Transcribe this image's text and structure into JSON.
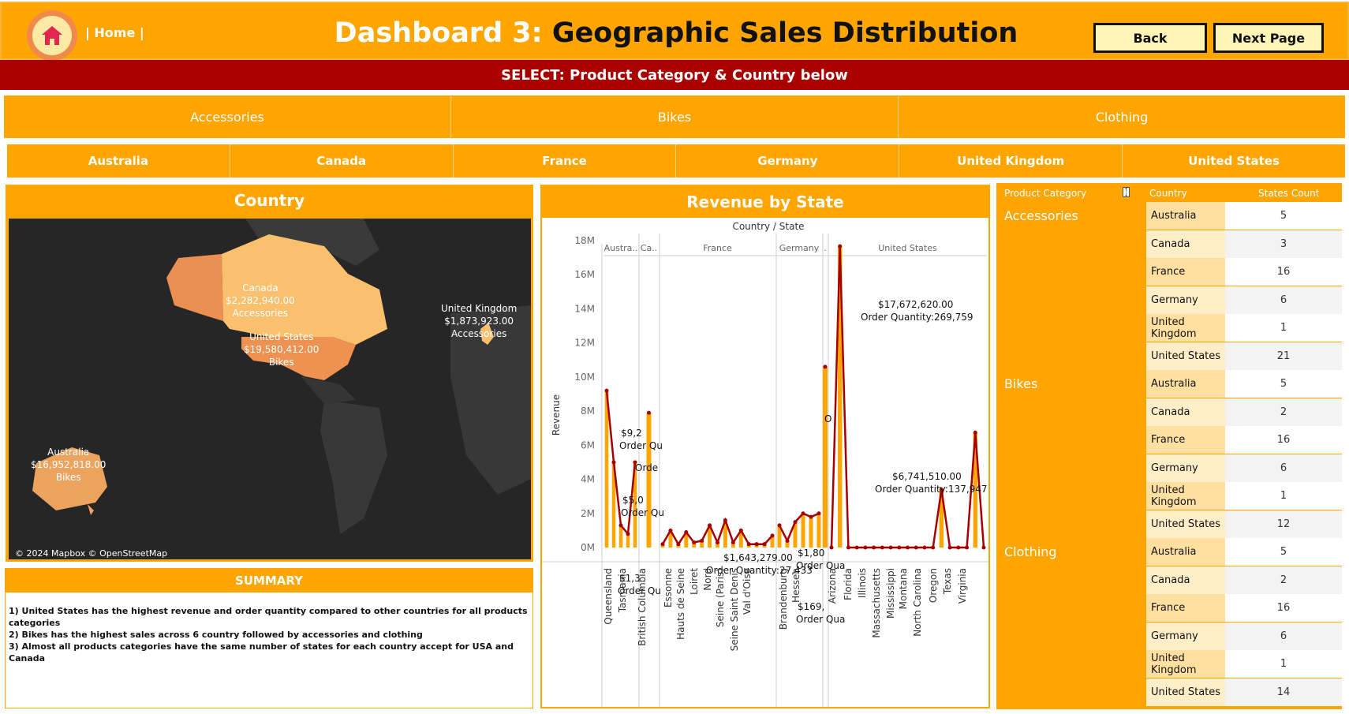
{
  "header": {
    "home_link": "| Home |",
    "title_prefix": "Dashboard 3: ",
    "title_main": "Geographic Sales Distribution",
    "back_label": "Back",
    "next_label": "Next Page"
  },
  "select_bar": "SELECT: Product Category & Country below",
  "categories": [
    "Accessories",
    "Bikes",
    "Clothing"
  ],
  "countries": [
    "Australia",
    "Canada",
    "France",
    "Germany",
    "United Kingdom",
    "United States"
  ],
  "map": {
    "title": "Country",
    "credit": "© 2024 Mapbox © OpenStreetMap",
    "labels": [
      {
        "country": "Canada",
        "revenue": "$2,282,940.00",
        "category": "Accessories"
      },
      {
        "country": "United States",
        "revenue": "$19,580,412.00",
        "category": "Bikes"
      },
      {
        "country": "United Kingdom",
        "revenue": "$1,873,923.00",
        "category": "Accessories"
      },
      {
        "country": "Australia",
        "revenue": "$16,952,818.00",
        "category": "Bikes"
      }
    ]
  },
  "summary": {
    "title": "SUMMARY",
    "lines": [
      "1) United States has the highest revenue and order quantity compared to other countries for all products categories",
      "2) Bikes has the highest sales across 6 country followed by accessories and clothing",
      "3) Almost all products categories have the same number of states for each country accept for USA and Canada"
    ]
  },
  "revenue_chart": {
    "title": "Revenue by State",
    "header": "Country / State",
    "ylabel": "Revenue",
    "ticks": [
      "0M",
      "2M",
      "4M",
      "6M",
      "8M",
      "10M",
      "12M",
      "14M",
      "16M",
      "18M"
    ],
    "country_headers": [
      "Austra..",
      "Ca..",
      "France",
      "Germany",
      ".",
      "United States"
    ],
    "x_labels": [
      "Queensland",
      "Tasmania",
      "British Columbia",
      "Essonne",
      "Hauts de Seine",
      "Loiret",
      "Nord",
      "Seine (Paris)",
      "Seine Saint Denis",
      "Val d'Oise",
      "Brandenburg",
      "Hessen",
      "Arizona",
      "Florida",
      "Illinois",
      "Massachusetts",
      "Mississippi",
      "Montana",
      "North Carolina",
      "Oregon",
      "Texas",
      "Virginia"
    ],
    "annotations": [
      {
        "line1": "$17,672,620.00",
        "line2": "Order Quantity:269,759"
      },
      {
        "line1": "$6,741,510.00",
        "line2": "Order Quantity:137,947"
      },
      {
        "line1": "$1,643,279.00",
        "line2": "Order Quantity:27,433"
      },
      {
        "line1": "$9,2",
        "line2": "Order Qu"
      },
      {
        "line1": "$5,0",
        "line2": "Order Qu"
      },
      {
        "line1": "$1,3",
        "line2": "Order Qu"
      },
      {
        "line1": "Orde",
        "line2": ""
      },
      {
        "line1": "$1,80",
        "line2": "Order Qua"
      },
      {
        "line1": "$169,",
        "line2": "Order Qua"
      },
      {
        "line1": "O",
        "line2": ""
      }
    ]
  },
  "chart_data": {
    "type": "line",
    "title": "Revenue by State",
    "xlabel": "Country / State",
    "ylabel": "Revenue",
    "ylim": [
      0,
      18000000
    ],
    "series": [
      {
        "name": "",
        "segments": [
          {
            "country": "Australia",
            "values": [
              9200000,
              5000000,
              1300000,
              800000,
              5000000
            ]
          },
          {
            "country": "Canada",
            "values": [
              7900000
            ]
          },
          {
            "country": "France",
            "values": [
              200000,
              1000000,
              200000,
              900000,
              300000,
              400000,
              1300000,
              300000,
              1600000,
              300000,
              1000000,
              200000,
              200000,
              200000,
              700000
            ]
          },
          {
            "country": "Germany",
            "values": [
              1300000,
              400000,
              1500000,
              2000000,
              1800000,
              2000000
            ]
          },
          {
            "country": "United Kingdom",
            "values": [
              10600000
            ]
          },
          {
            "country": "United States",
            "values": [
              0,
              17672620,
              0,
              0,
              0,
              0,
              0,
              0,
              0,
              0,
              0,
              0,
              0,
              3400000,
              0,
              0,
              0,
              6741510,
              0
            ]
          }
        ]
      }
    ]
  },
  "table": {
    "headers": [
      "Product Category",
      "Country",
      "States Count"
    ],
    "groups": [
      {
        "category": "Accessories",
        "rows": [
          [
            "Australia",
            "5"
          ],
          [
            "Canada",
            "3"
          ],
          [
            "France",
            "16"
          ],
          [
            "Germany",
            "6"
          ],
          [
            "United Kingdom",
            "1"
          ],
          [
            "United States",
            "21"
          ]
        ]
      },
      {
        "category": "Bikes",
        "rows": [
          [
            "Australia",
            "5"
          ],
          [
            "Canada",
            "2"
          ],
          [
            "France",
            "16"
          ],
          [
            "Germany",
            "6"
          ],
          [
            "United Kingdom",
            "1"
          ],
          [
            "United States",
            "12"
          ]
        ]
      },
      {
        "category": "Clothing",
        "rows": [
          [
            "Australia",
            "5"
          ],
          [
            "Canada",
            "2"
          ],
          [
            "France",
            "16"
          ],
          [
            "Germany",
            "6"
          ],
          [
            "United Kingdom",
            "1"
          ],
          [
            "United States",
            "14"
          ]
        ]
      }
    ]
  },
  "colors": {
    "orange": "#ffa500",
    "dark_red": "#a90000",
    "map_bg": "#262626",
    "line": "#a50000"
  }
}
